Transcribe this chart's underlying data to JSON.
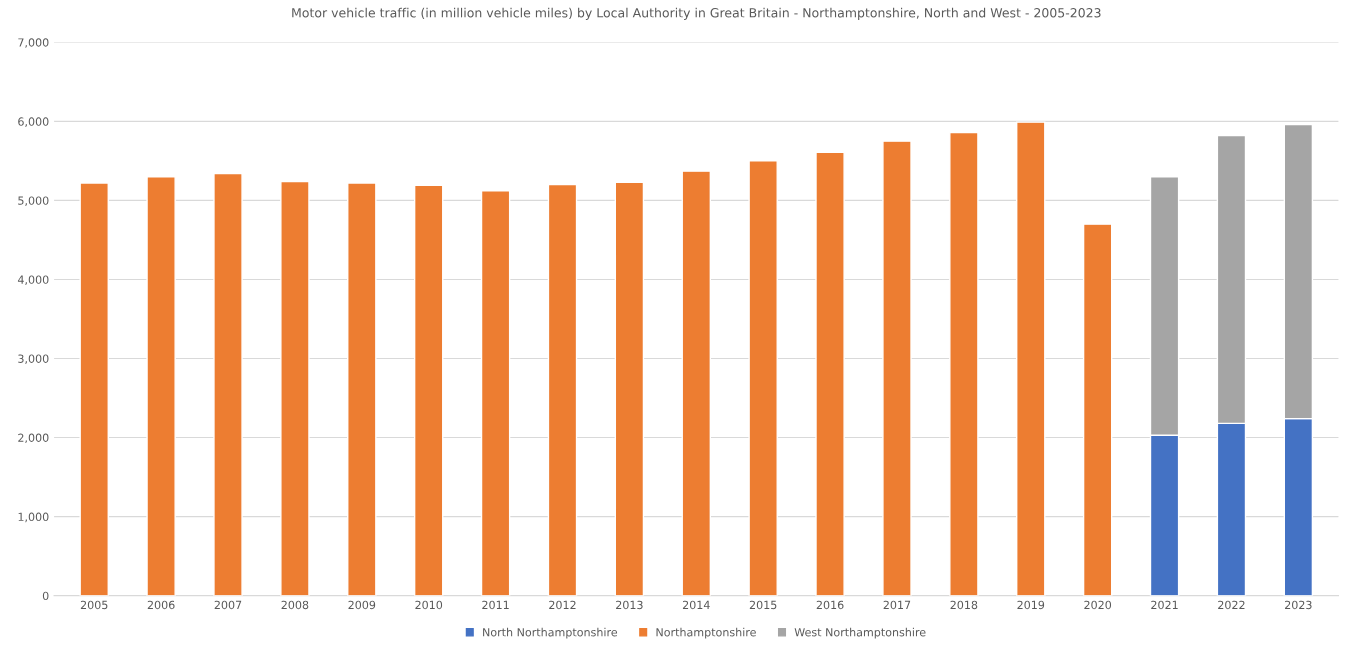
{
  "chart_data": {
    "type": "bar",
    "stacked": true,
    "title": "Motor vehicle traffic (in million vehicle miles) by Local Authority in Great Britain - Northamptonshire, North and West - 2005-2023",
    "categories": [
      "2005",
      "2006",
      "2007",
      "2008",
      "2009",
      "2010",
      "2011",
      "2012",
      "2013",
      "2014",
      "2015",
      "2016",
      "2017",
      "2018",
      "2019",
      "2020",
      "2021",
      "2022",
      "2023"
    ],
    "series": [
      {
        "name": "North Northamptonshire",
        "color": "#4472c4",
        "values": [
          null,
          null,
          null,
          null,
          null,
          null,
          null,
          null,
          null,
          null,
          null,
          null,
          null,
          null,
          null,
          null,
          2030,
          2180,
          2240
        ]
      },
      {
        "name": "Northamptonshire",
        "color": "#ed7d31",
        "values": [
          5220,
          5300,
          5340,
          5240,
          5220,
          5190,
          5120,
          5200,
          5230,
          5370,
          5500,
          5610,
          5750,
          5860,
          5990,
          4700,
          null,
          null,
          null
        ]
      },
      {
        "name": "West Northamptonshire",
        "color": "#a5a5a5",
        "values": [
          null,
          null,
          null,
          null,
          null,
          null,
          null,
          null,
          null,
          null,
          null,
          null,
          null,
          null,
          null,
          null,
          3270,
          3640,
          3720
        ]
      }
    ],
    "ylim": [
      0,
      7000
    ],
    "yticks": [
      {
        "value": 0,
        "label": "0"
      },
      {
        "value": 1000,
        "label": "1,000"
      },
      {
        "value": 2000,
        "label": "2,000"
      },
      {
        "value": 3000,
        "label": "3,000"
      },
      {
        "value": 4000,
        "label": "4,000"
      },
      {
        "value": 5000,
        "label": "5,000"
      },
      {
        "value": 6000,
        "label": "6,000"
      },
      {
        "value": 7000,
        "label": "7,000"
      }
    ],
    "grid": "y",
    "legend": "bottom"
  }
}
